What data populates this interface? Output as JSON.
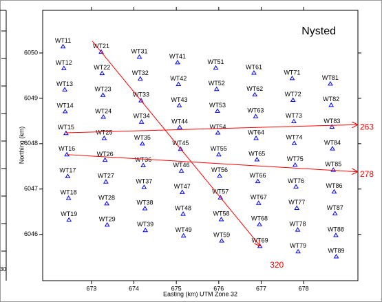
{
  "chart_data": {
    "type": "scatter",
    "title": "Nysted",
    "x_label": "Easting (km) UTM Zone 32",
    "y_label": "Northing (km)",
    "left_panel_label": "30",
    "xlim": [
      671.85,
      679.28
    ],
    "ylim": [
      6044.98,
      6050.94
    ],
    "xticks": [
      673,
      674,
      675,
      676,
      677,
      678
    ],
    "yticks": [
      6046,
      6047,
      6048,
      6049,
      6050
    ],
    "marker_color": "#0000ff",
    "line_color": "#ff0000",
    "point_labels": [
      "WT11",
      "WT12",
      "WT13",
      "WT14",
      "WT15",
      "WT16",
      "WT17",
      "WT18",
      "WT19",
      "WT21",
      "WT22",
      "WT23",
      "WT24",
      "WT25",
      "WT26",
      "WT27",
      "WT28",
      "WT29",
      "WT31",
      "WT32",
      "WT33",
      "WT34",
      "WT35",
      "WT36",
      "WT37",
      "WT38",
      "WT39",
      "WT41",
      "WT42",
      "WT43",
      "WT44",
      "WT45",
      "WT46",
      "WT47",
      "WT48",
      "WT49",
      "WT51",
      "WT52",
      "WT53",
      "WT54",
      "WT55",
      "WT56",
      "WT57",
      "WT58",
      "WT59",
      "WT61",
      "WT62",
      "WT63",
      "WT64",
      "WT65",
      "WT66",
      "WT67",
      "WT68",
      "WT69",
      "WT71",
      "WT72",
      "WT73",
      "WT74",
      "WT75",
      "WT76",
      "WT77",
      "WT78",
      "WT79",
      "WT81",
      "WT82",
      "WT83",
      "WT84",
      "WT85",
      "WT86",
      "WT87",
      "WT88",
      "WT89"
    ],
    "x": [
      672.33,
      672.35,
      672.37,
      672.38,
      672.4,
      672.42,
      672.44,
      672.46,
      672.47,
      673.23,
      673.25,
      673.27,
      673.28,
      673.3,
      673.32,
      673.34,
      673.36,
      673.37,
      674.13,
      674.15,
      674.17,
      674.18,
      674.2,
      674.22,
      674.24,
      674.26,
      674.27,
      675.03,
      675.05,
      675.07,
      675.08,
      675.1,
      675.12,
      675.14,
      675.16,
      675.17,
      675.93,
      675.95,
      675.97,
      675.98,
      676.0,
      676.02,
      676.04,
      676.06,
      676.07,
      676.83,
      676.85,
      676.87,
      676.88,
      676.9,
      676.92,
      676.94,
      676.96,
      676.97,
      677.73,
      677.75,
      677.77,
      677.78,
      677.8,
      677.82,
      677.84,
      677.86,
      677.87,
      678.63,
      678.65,
      678.67,
      678.68,
      678.7,
      678.72,
      678.74,
      678.76,
      678.77
    ],
    "y": [
      6050.14,
      6049.66,
      6049.19,
      6048.71,
      6048.23,
      6047.76,
      6047.28,
      6046.8,
      6046.32,
      6050.02,
      6049.55,
      6049.07,
      6048.59,
      6048.12,
      6047.64,
      6047.16,
      6046.68,
      6046.21,
      6049.91,
      6049.43,
      6048.95,
      6048.48,
      6048.0,
      6047.52,
      6047.04,
      6046.57,
      6046.09,
      6049.79,
      6049.31,
      6048.84,
      6048.36,
      6047.88,
      6047.4,
      6046.93,
      6046.45,
      6045.97,
      6049.67,
      6049.2,
      6048.72,
      6048.24,
      6047.76,
      6047.29,
      6046.81,
      6046.33,
      6045.86,
      6049.56,
      6049.08,
      6048.6,
      6048.12,
      6047.65,
      6047.17,
      6046.69,
      6046.22,
      6045.74,
      6049.44,
      6048.96,
      6048.49,
      6048.01,
      6047.53,
      6047.05,
      6046.58,
      6046.1,
      6045.62,
      6049.32,
      6048.85,
      6048.37,
      6047.89,
      6047.42,
      6046.94,
      6046.46,
      6045.98,
      6045.51
    ],
    "lines": [
      {
        "label": "320",
        "x": [
          673.02,
          676.98
        ],
        "y": [
          6050.26,
          6045.74
        ]
      },
      {
        "label": "263",
        "x": [
          672.4,
          679.28
        ],
        "y": [
          6048.24,
          6048.42
        ]
      },
      {
        "label": "278",
        "x": [
          672.42,
          679.28
        ],
        "y": [
          6047.76,
          6047.38
        ]
      }
    ]
  }
}
